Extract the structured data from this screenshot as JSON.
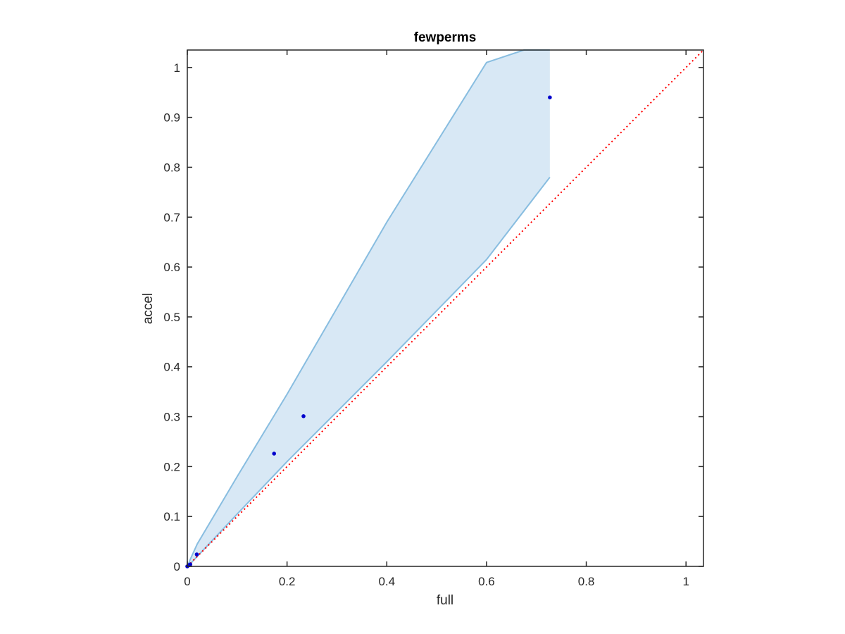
{
  "chart_data": {
    "type": "scatter",
    "title": "fewperms",
    "xlabel": "full",
    "ylabel": "accel",
    "xlim": [
      0,
      1.035
    ],
    "ylim": [
      0,
      1.035
    ],
    "xticks": [
      0,
      0.2,
      0.4,
      0.6,
      0.8,
      1
    ],
    "yticks": [
      0,
      0.1,
      0.2,
      0.3,
      0.4,
      0.5,
      0.6,
      0.7,
      0.8,
      0.9,
      1
    ],
    "xtick_labels": [
      "0",
      "0.2",
      "0.4",
      "0.6",
      "0.8",
      "1"
    ],
    "ytick_labels": [
      "0",
      "0.1",
      "0.2",
      "0.3",
      "0.4",
      "0.5",
      "0.6",
      "0.7",
      "0.8",
      "0.9",
      "1"
    ],
    "grid": false,
    "points": {
      "x": [
        0.0,
        0.002,
        0.004,
        0.006,
        0.019,
        0.174,
        0.233,
        0.727
      ],
      "y": [
        0.0,
        0.002,
        0.003,
        0.004,
        0.024,
        0.226,
        0.301,
        0.94
      ],
      "color": "#0000CC"
    },
    "band": {
      "upper": {
        "x": [
          0,
          0.005,
          0.02,
          0.1,
          0.2,
          0.4,
          0.6,
          0.675,
          0.727
        ],
        "y": [
          0,
          0.012,
          0.045,
          0.18,
          0.345,
          0.69,
          1.01,
          1.035,
          1.035
        ]
      },
      "lower": {
        "x": [
          0,
          0.005,
          0.02,
          0.1,
          0.2,
          0.4,
          0.6,
          0.727
        ],
        "y": [
          0,
          0.004,
          0.02,
          0.105,
          0.21,
          0.41,
          0.615,
          0.78
        ]
      },
      "fill_color": "#d8e8f5",
      "line_color": "#88bde0"
    },
    "reference_line": {
      "x": [
        0,
        1.035
      ],
      "y": [
        0,
        1.035
      ],
      "style": "dotted",
      "color": "#ff0000"
    },
    "axis_color": "#262626"
  }
}
